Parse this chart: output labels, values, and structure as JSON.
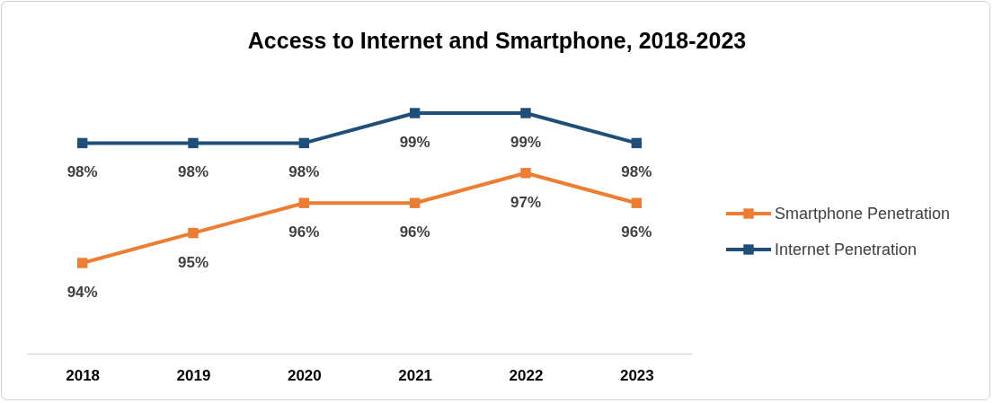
{
  "chart_data": {
    "type": "line",
    "title": "Access to Internet and Smartphone, 2018-2023",
    "categories": [
      "2018",
      "2019",
      "2020",
      "2021",
      "2022",
      "2023"
    ],
    "series": [
      {
        "name": "Smartphone Penetration",
        "color": "#ed7d31",
        "values": [
          94,
          95,
          96,
          96,
          97,
          96
        ],
        "value_labels": [
          "94%",
          "95%",
          "96%",
          "96%",
          "97%",
          "96%"
        ]
      },
      {
        "name": "Internet Penetration",
        "color": "#1f4e79",
        "values": [
          98,
          98,
          98,
          99,
          99,
          98
        ],
        "value_labels": [
          "98%",
          "98%",
          "98%",
          "99%",
          "99%",
          "98%"
        ]
      }
    ],
    "tick_labels": "x",
    "legend": "right",
    "marker": "square",
    "line_style": "solid"
  }
}
